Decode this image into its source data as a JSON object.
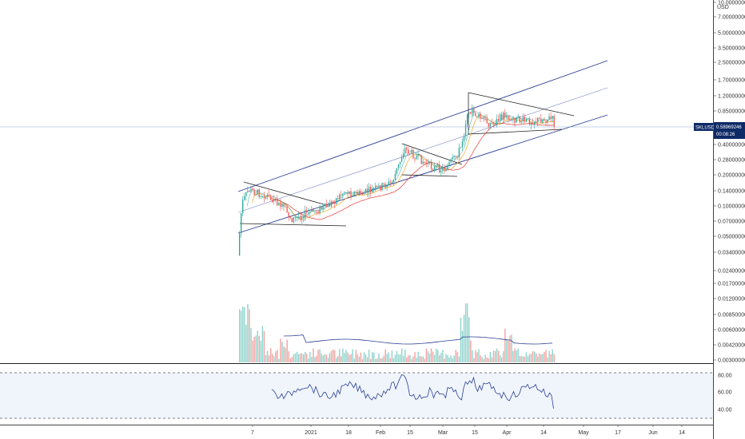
{
  "chart_data": {
    "type": "candlestick",
    "symbol_badge": "SKLUSD",
    "price_badge": "0.58969246",
    "countdown": "00:08:26",
    "currency": "USD",
    "y_scale": "log",
    "y_ticks": [
      "10.00000000",
      "7.00000000",
      "5.00000000",
      "3.50000000",
      "2.50000000",
      "1.70000000",
      "1.20000000",
      "0.85000000",
      "0.40000000",
      "0.28000000",
      "0.20000000",
      "0.14000000",
      "0.10000000",
      "0.07000000",
      "0.05000000",
      "0.03400000",
      "0.02400000",
      "0.01700000",
      "0.01200000",
      "0.00850000",
      "0.00600000",
      "0.00420000",
      "0.00300000"
    ],
    "x_ticks": [
      "7",
      "2021",
      "18",
      "Feb",
      "15",
      "Mar",
      "15",
      "Apr",
      "14",
      "May",
      "17",
      "Jun",
      "14"
    ],
    "rsi_ticks": [
      "80.00",
      "60.00",
      "40.00"
    ],
    "rsi_bands": [
      70,
      30
    ],
    "last_price": 0.58969246,
    "colors": {
      "up": "#26a69a",
      "down": "#ef5350",
      "channel": "#2a3f94",
      "midline": "#7a84c4",
      "ma_fast": "#f5a623",
      "ma_slow": "#e53935",
      "ma_teal": "#26a69a",
      "rsi": "#2a3f94",
      "badge": "#0d2a66"
    }
  }
}
